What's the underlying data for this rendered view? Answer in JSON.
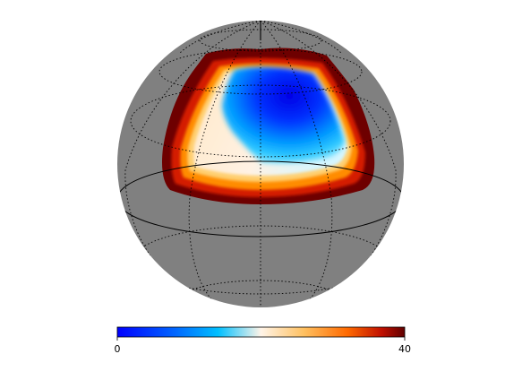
{
  "map": {
    "projection": "orthographic",
    "background_color": "#808080",
    "graticule": {
      "style": "dotted",
      "color": "#000000",
      "equator_style": "solid"
    }
  },
  "colorbar": {
    "min_label": "0",
    "max_label": "40",
    "min": 0,
    "max": 40,
    "colormap": [
      "#0000ff",
      "#00bfff",
      "#e0ffff",
      "#ffd0a0",
      "#ffa500",
      "#ff4500",
      "#600000"
    ]
  }
}
